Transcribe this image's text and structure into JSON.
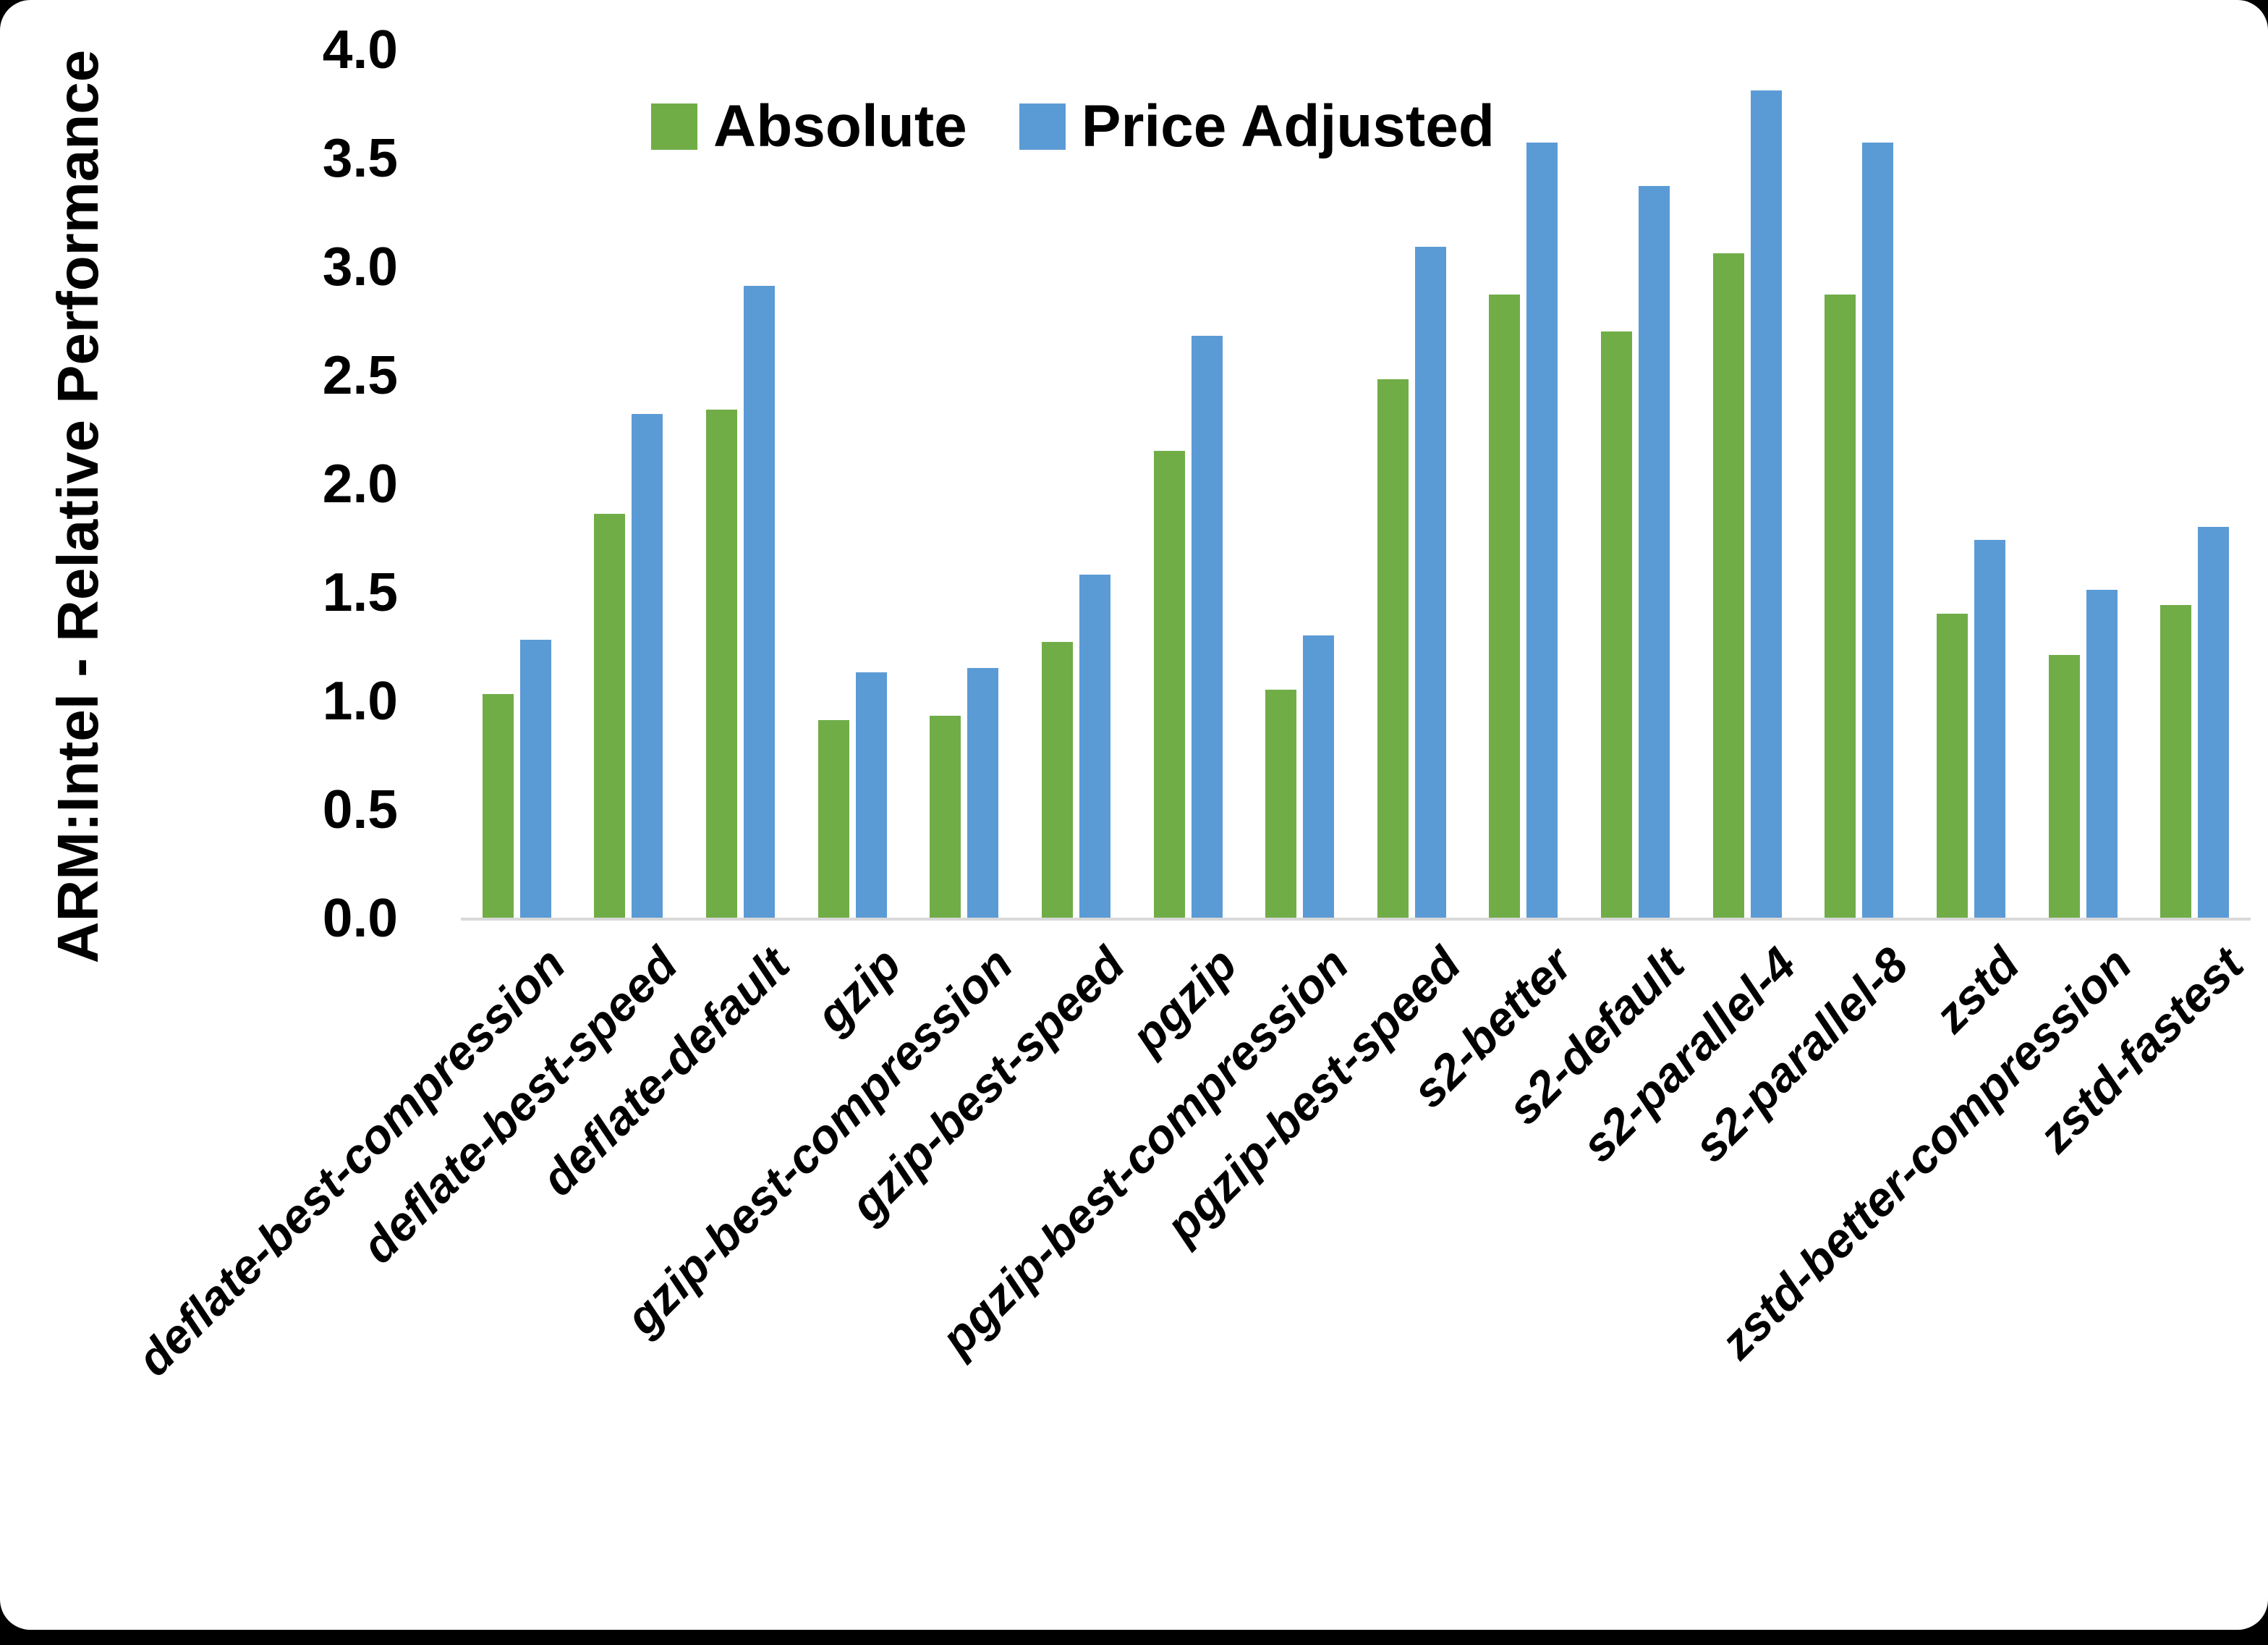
{
  "chart_data": {
    "type": "bar",
    "title": "",
    "xlabel": "",
    "ylabel": "ARM:Intel - Relative Performance",
    "ylim": [
      0.0,
      4.0
    ],
    "ytick_step": 0.5,
    "yticks": [
      "4.0",
      "3.5",
      "3.0",
      "2.5",
      "2.0",
      "1.5",
      "1.0",
      "0.5",
      "0.0"
    ],
    "grid": "off",
    "legend_position": "top-center",
    "categories": [
      "deflate-best-compression",
      "deflate-best-speed",
      "deflate-default",
      "gzip",
      "gzip-best-compression",
      "gzip-best-speed",
      "pgzip",
      "pgzip-best-compression",
      "pgzip-best-speed",
      "s2-better",
      "s2-default",
      "s2-parallel-4",
      "s2-parallel-8",
      "zstd",
      "zstd-better-compression",
      "zstd-fastest"
    ],
    "series": [
      {
        "name": "Absolute",
        "color": "#70AD47",
        "values": [
          1.03,
          1.86,
          2.34,
          0.91,
          0.93,
          1.27,
          2.15,
          1.05,
          2.48,
          2.87,
          2.7,
          3.06,
          2.87,
          1.4,
          1.21,
          1.44
        ]
      },
      {
        "name": "Price Adjusted",
        "color": "#5B9BD5",
        "values": [
          1.28,
          2.32,
          2.91,
          1.13,
          1.15,
          1.58,
          2.68,
          1.3,
          3.09,
          3.57,
          3.37,
          3.81,
          3.57,
          1.74,
          1.51,
          1.8
        ]
      }
    ]
  },
  "colors": {
    "absolute_green": "#70AD47",
    "price_adjusted_blue": "#5B9BD5",
    "axis_line": "#D9D9D9",
    "text": "#000000",
    "card_background": "#FFFFFF",
    "frame": "#000000"
  }
}
